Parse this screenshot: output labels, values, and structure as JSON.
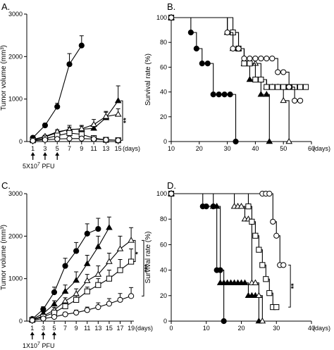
{
  "chart_data": [
    {
      "panel": "A.",
      "type": "line",
      "ylabel": "Tumor volume (mm³)",
      "xlabel": "(days)",
      "xticks": [
        "1",
        "3",
        "5",
        "7",
        "9",
        "11",
        "13",
        "15"
      ],
      "yticks": [
        "0",
        "1000",
        "2000",
        "3000"
      ],
      "xlim": [
        0,
        15.5
      ],
      "ylim": [
        0,
        3000
      ],
      "dose": {
        "base": "5X10",
        "exp": "7",
        "unit": " PFU"
      },
      "dose_days": [
        1,
        3,
        5
      ],
      "significance": "**",
      "series": [
        {
          "marker": "filled-circle",
          "x": [
            1,
            3,
            5,
            7,
            9
          ],
          "y": [
            90,
            380,
            820,
            1820,
            2260
          ],
          "err": [
            20,
            50,
            80,
            250,
            230
          ]
        },
        {
          "marker": "filled-triangle",
          "x": [
            1,
            3,
            5,
            7,
            9,
            11,
            13,
            15
          ],
          "y": [
            40,
            110,
            210,
            290,
            290,
            310,
            560,
            960
          ],
          "err": [
            10,
            30,
            40,
            90,
            70,
            100,
            150,
            350
          ]
        },
        {
          "marker": "open-triangle",
          "x": [
            1,
            3,
            5,
            7,
            9,
            11,
            13,
            15
          ],
          "y": [
            50,
            120,
            230,
            280,
            300,
            400,
            590,
            640
          ],
          "err": [
            10,
            30,
            50,
            60,
            80,
            120,
            100,
            130
          ]
        },
        {
          "marker": "open-square",
          "x": [
            1,
            3,
            5,
            7,
            9,
            11,
            13,
            15
          ],
          "y": [
            30,
            70,
            140,
            200,
            170,
            80,
            40,
            30
          ],
          "err": [
            10,
            20,
            40,
            60,
            50,
            30,
            15,
            10
          ]
        },
        {
          "marker": "open-circle",
          "x": [
            1,
            3,
            5,
            7,
            9,
            11,
            13,
            15
          ],
          "y": [
            20,
            40,
            60,
            70,
            70,
            60,
            40,
            30
          ],
          "err": [
            5,
            10,
            15,
            20,
            20,
            15,
            10,
            10
          ]
        }
      ]
    },
    {
      "panel": "B.",
      "type": "line",
      "ylabel": "Survival rate (%)",
      "xlabel": "(days)",
      "xticks": [
        "10",
        "20",
        "30",
        "40",
        "50",
        "60"
      ],
      "yticks": [
        "0",
        "20",
        "40",
        "60",
        "80",
        "100"
      ],
      "xlim": [
        10,
        60
      ],
      "ylim": [
        0,
        100
      ],
      "series": [
        {
          "marker": "filled-circle",
          "x": [
            10,
            17,
            19,
            21,
            23,
            25,
            27,
            29,
            31,
            33
          ],
          "y": [
            100,
            88,
            75,
            63,
            63,
            38,
            38,
            38,
            38,
            0
          ],
          "step_end": 33
        },
        {
          "marker": "filled-triangle",
          "x": [
            10,
            30,
            32,
            34,
            36,
            38,
            40,
            42,
            44,
            45
          ],
          "y": [
            100,
            88,
            88,
            75,
            63,
            50,
            50,
            38,
            38,
            0
          ],
          "step_end": 45
        },
        {
          "marker": "open-triangle",
          "x": [
            10,
            30,
            32,
            34,
            36,
            38,
            40,
            42,
            44,
            46,
            48,
            50,
            52
          ],
          "y": [
            100,
            88,
            75,
            75,
            63,
            63,
            63,
            50,
            44,
            44,
            44,
            33,
            0
          ],
          "step_end": 52
        },
        {
          "marker": "open-square",
          "x": [
            10,
            32,
            34,
            36,
            38,
            40,
            42,
            44,
            46,
            48,
            50,
            52,
            54,
            56,
            58
          ],
          "y": [
            100,
            88,
            75,
            63,
            63,
            50,
            50,
            44,
            44,
            44,
            44,
            44,
            44,
            44,
            44
          ],
          "step_end": 58
        },
        {
          "marker": "open-circle",
          "x": [
            10,
            30,
            32,
            34,
            36,
            38,
            40,
            42,
            44,
            46,
            48,
            50,
            52,
            54,
            56
          ],
          "y": [
            100,
            88,
            75,
            75,
            67,
            67,
            67,
            67,
            67,
            67,
            56,
            56,
            44,
            33,
            33
          ],
          "step_end": 56
        }
      ]
    },
    {
      "panel": "C.",
      "type": "line",
      "ylabel": "Tumor volume (mm³)",
      "xlabel": "(days)",
      "xticks": [
        "1",
        "3",
        "5",
        "7",
        "9",
        "11",
        "13",
        "15",
        "17",
        "19"
      ],
      "yticks": [
        "0",
        "1000",
        "2000",
        "3000"
      ],
      "xlim": [
        0,
        19.5
      ],
      "ylim": [
        0,
        3000
      ],
      "dose": {
        "base": "1X10",
        "exp": "7",
        "unit": " PFU"
      },
      "dose_days": [
        1,
        3,
        5
      ],
      "significance": [
        "*",
        "***"
      ],
      "series": [
        {
          "marker": "filled-circle",
          "x": [
            1,
            3,
            5,
            7,
            9,
            11,
            13
          ],
          "y": [
            50,
            280,
            680,
            1300,
            1650,
            2060,
            2170
          ],
          "err": [
            20,
            60,
            120,
            180,
            200,
            230,
            250
          ]
        },
        {
          "marker": "filled-triangle",
          "x": [
            1,
            3,
            5,
            7,
            9,
            11,
            13,
            15
          ],
          "y": [
            40,
            180,
            400,
            700,
            960,
            1350,
            1750,
            2200
          ],
          "err": [
            10,
            40,
            80,
            150,
            200,
            200,
            250,
            250
          ]
        },
        {
          "marker": "open-triangle",
          "x": [
            1,
            3,
            5,
            7,
            9,
            11,
            13,
            15,
            17,
            19
          ],
          "y": [
            30,
            120,
            260,
            470,
            640,
            950,
            1100,
            1400,
            1700,
            1900
          ],
          "err": [
            10,
            40,
            60,
            80,
            120,
            150,
            200,
            200,
            300,
            300
          ]
        },
        {
          "marker": "open-square",
          "x": [
            1,
            3,
            5,
            7,
            9,
            11,
            13,
            15,
            17,
            19
          ],
          "y": [
            30,
            100,
            200,
            350,
            500,
            700,
            850,
            1000,
            1200,
            1400
          ],
          "err": [
            10,
            30,
            50,
            80,
            100,
            100,
            150,
            200,
            250,
            300
          ]
        },
        {
          "marker": "open-circle",
          "x": [
            1,
            3,
            5,
            7,
            9,
            11,
            13,
            15,
            17,
            19
          ],
          "y": [
            20,
            60,
            100,
            160,
            200,
            260,
            330,
            410,
            500,
            590
          ],
          "err": [
            5,
            20,
            30,
            50,
            60,
            70,
            100,
            120,
            150,
            200
          ]
        }
      ]
    },
    {
      "panel": "D.",
      "type": "line",
      "ylabel": "Survival rate (%)",
      "xlabel": "(days)",
      "xticks": [
        "0",
        "10",
        "20",
        "30",
        "40"
      ],
      "yticks": [
        "0",
        "20",
        "40",
        "60",
        "80",
        "100"
      ],
      "xlim": [
        0,
        40
      ],
      "ylim": [
        0,
        100
      ],
      "significance": "**",
      "series": [
        {
          "marker": "filled-circle",
          "x": [
            0,
            9,
            10,
            12,
            13,
            14,
            15
          ],
          "y": [
            100,
            90,
            90,
            90,
            40,
            40,
            0
          ],
          "step_end": 15
        },
        {
          "marker": "filled-triangle",
          "x": [
            0,
            12,
            13,
            14,
            15,
            16,
            17,
            18,
            19,
            20,
            21,
            22,
            23,
            24,
            25
          ],
          "y": [
            100,
            90,
            90,
            30,
            30,
            30,
            30,
            30,
            30,
            30,
            30,
            20,
            20,
            20,
            0
          ],
          "step_end": 25
        },
        {
          "marker": "open-triangle",
          "x": [
            0,
            18,
            19,
            20,
            21,
            22,
            23,
            24,
            25,
            26
          ],
          "y": [
            100,
            90,
            90,
            90,
            80,
            80,
            30,
            30,
            20,
            0
          ],
          "step_end": 26
        },
        {
          "marker": "open-square",
          "x": [
            0,
            22,
            23,
            24,
            25,
            26,
            27,
            28,
            29,
            30
          ],
          "y": [
            100,
            90,
            78,
            67,
            56,
            44,
            33,
            22,
            11,
            11
          ],
          "step_end": 30
        },
        {
          "marker": "open-circle",
          "x": [
            0,
            26,
            27,
            28,
            29,
            30,
            31,
            32
          ],
          "y": [
            100,
            100,
            100,
            100,
            78,
            67,
            44,
            44
          ],
          "step_end": 32
        }
      ]
    }
  ]
}
